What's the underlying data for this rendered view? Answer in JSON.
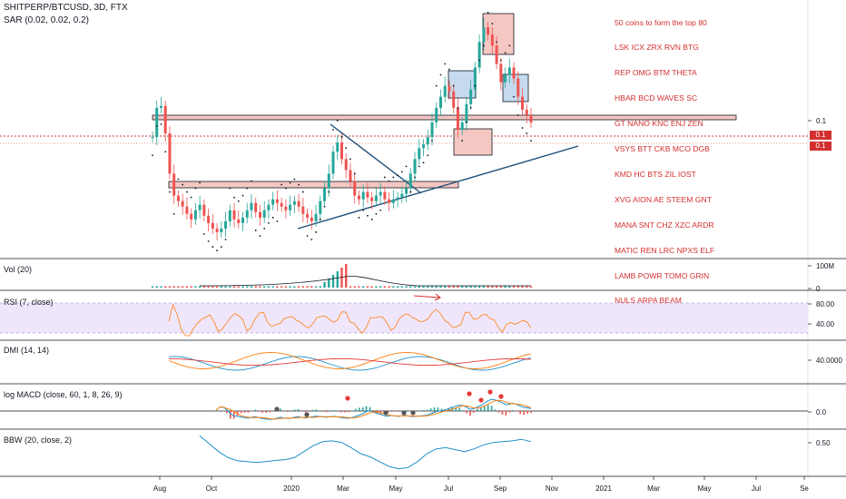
{
  "header": {
    "symbol_line": "SHITPERP/BTCUSD, 3D, FTX",
    "sar_line": "SAR (0.02, 0.02, 0.2)"
  },
  "note": {
    "lines": [
      "50 coins to form the top 80",
      "LSK ICX ZRX RVN BTG",
      "REP OMG BTM THETA",
      "HBAR BCD WAVES SC",
      "GT NANO KNC ENJ ZEN",
      "VSYS BTT CKB MCO DGB",
      "KMD HC BTS ZIL IOST",
      "XVG AION AE STEEM GNT",
      "MANA SNT CHZ XZC ARDR",
      "MATIC REN LRC NPXS ELF",
      "LAMB POWR TOMO GRIN",
      "NULS ARPA BEAM"
    ],
    "color": "#d32f2f"
  },
  "panes": {
    "vol": "Vol (20)",
    "rsi": "RSI (7, close)",
    "dmi": "DMI (14, 14)",
    "macd": "log MACD (close, 60, 1, 8, 26, 9)",
    "bbw": "BBW (20, close, 2)"
  },
  "price_tags": [
    "0.1",
    "0.1"
  ],
  "colors": {
    "up": "#26a69a",
    "down": "#ef5350",
    "trend_line": "#1e4e79",
    "box_red": "#f4c7c3",
    "box_blue": "#c6dbef",
    "rsi_band": "#efe6fb",
    "rsi_line": "#ff7f0e",
    "dmi_plus": "#1f8fc8",
    "dmi_minus": "#ff7f0e",
    "dmi_adx": "#e53935",
    "macd_line": "#1f8fc8",
    "macd_signal": "#ff7f0e",
    "bbw_line": "#1f8fc8",
    "sar_dots": "#131722"
  },
  "chart_data": {
    "type": "candlestick",
    "time_axis": [
      "Aug",
      "Oct",
      "2020",
      "Mar",
      "May",
      "Jul",
      "Sep",
      "Nov",
      "2021",
      "Mar",
      "May",
      "Jul",
      "Se"
    ],
    "price_axis": {
      "ticks": [
        "0.1"
      ]
    },
    "panes": [
      {
        "name": "Vol (20)",
        "ticks": [
          "100M",
          "0"
        ]
      },
      {
        "name": "RSI (7, close)",
        "ticks": [
          "80.00",
          "40.00"
        ],
        "band": [
          20,
          80
        ]
      },
      {
        "name": "DMI (14, 14)",
        "ticks": [
          "40.0000"
        ]
      },
      {
        "name": "log MACD (close, 60, 1, 8, 26, 9)",
        "ticks": [
          "0.0"
        ]
      },
      {
        "name": "BBW (20, close, 2)",
        "ticks": [
          "0.50"
        ]
      }
    ],
    "price_series_relative": [
      0.8,
      0.96,
      0.97,
      0.82,
      0.6,
      0.48,
      0.45,
      0.42,
      0.38,
      0.35,
      0.4,
      0.43,
      0.37,
      0.33,
      0.3,
      0.28,
      0.3,
      0.34,
      0.4,
      0.35,
      0.33,
      0.36,
      0.4,
      0.44,
      0.39,
      0.36,
      0.4,
      0.43,
      0.46,
      0.44,
      0.42,
      0.4,
      0.43,
      0.45,
      0.42,
      0.38,
      0.36,
      0.34,
      0.38,
      0.45,
      0.52,
      0.6,
      0.72,
      0.77,
      0.68,
      0.62,
      0.56,
      0.48,
      0.46,
      0.5,
      0.47,
      0.45,
      0.48,
      0.5,
      0.46,
      0.44,
      0.46,
      0.47,
      0.49,
      0.52,
      0.6,
      0.68,
      0.74,
      0.76,
      0.8,
      0.88,
      0.96,
      1.02,
      1.08,
      1.05,
      0.96,
      0.84,
      0.88,
      0.98,
      1.06,
      1.18,
      1.32,
      1.4,
      1.36,
      1.3,
      1.2,
      1.1,
      1.14,
      1.18,
      1.12,
      1.02,
      0.95,
      0.92,
      0.88
    ],
    "annotations": [
      "Resistance box near 0.1",
      "Support box (Jan–Jun 2020)",
      "Descending and ascending trend lines",
      "Red and blue highlight boxes at Jul–Sep 2020 peaks"
    ]
  }
}
